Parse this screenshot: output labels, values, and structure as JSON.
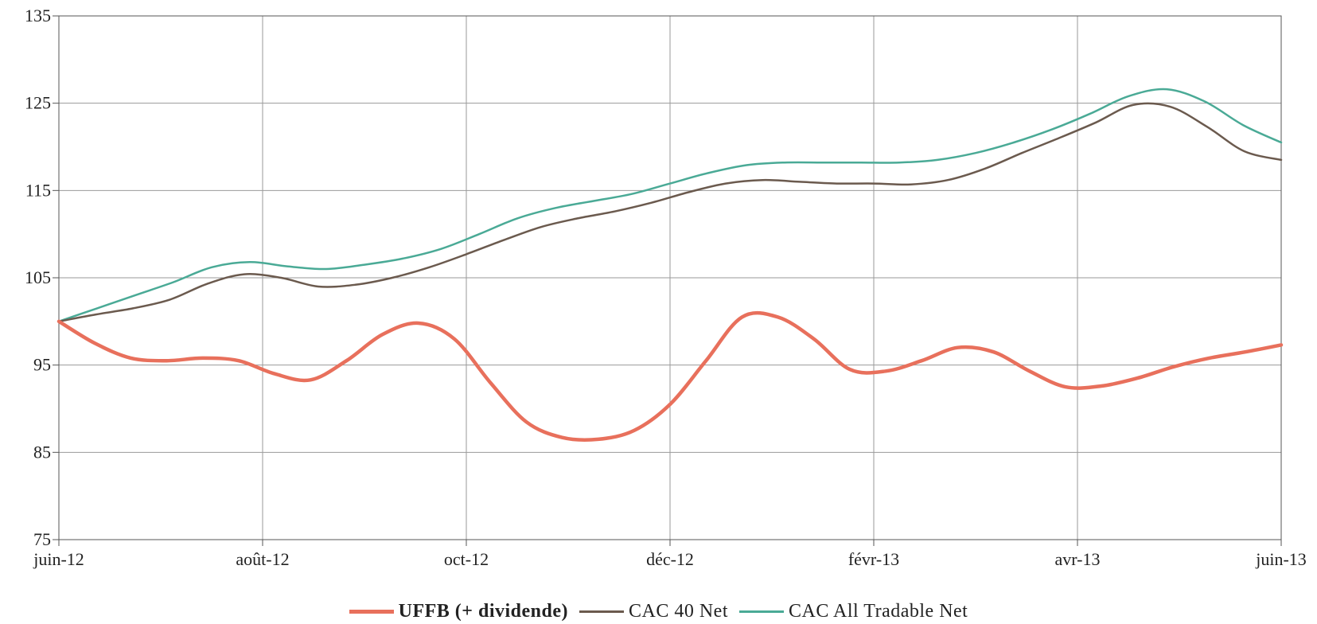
{
  "chart_data": {
    "type": "line",
    "title": "",
    "xlabel": "",
    "ylabel": "",
    "ylim": [
      75,
      135
    ],
    "yticks": [
      "135",
      "125",
      "115",
      "105",
      "95",
      "85",
      "75"
    ],
    "ytick_values": [
      135,
      125,
      115,
      105,
      95,
      85,
      75
    ],
    "xticks": [
      "juin-12",
      "août-12",
      "oct-12",
      "déc-12",
      "févr-13",
      "avr-13",
      "juin-13"
    ],
    "grid": true,
    "legend_position": "bottom",
    "series": [
      {
        "name": "UFFB (+ dividende)",
        "color": "#e8705c",
        "bold": true,
        "values": [
          100,
          97.5,
          95.8,
          95.5,
          95.8,
          95.5,
          94,
          93.3,
          95.5,
          98.5,
          99.8,
          98,
          93,
          88.5,
          86.7,
          86.5,
          87.5,
          90.5,
          95.5,
          100.5,
          100.5,
          98,
          94.5,
          94.3,
          95.5,
          97,
          96.5,
          94.3,
          92.5,
          92.6,
          93.5,
          94.8,
          95.8,
          96.5,
          97.3
        ]
      },
      {
        "name": "CAC 40 Net",
        "color": "#6b5a4e",
        "bold": false,
        "values": [
          100,
          100.8,
          101.5,
          102.5,
          104.3,
          105.4,
          105,
          104,
          104.2,
          105,
          106.2,
          107.7,
          109.3,
          110.8,
          111.8,
          112.6,
          113.6,
          114.8,
          115.8,
          116.2,
          116,
          115.8,
          115.8,
          115.7,
          116.2,
          117.5,
          119.3,
          121,
          122.8,
          124.8,
          124.6,
          122.3,
          119.5,
          118.5
        ]
      },
      {
        "name": "CAC All Tradable Net",
        "color": "#4aaa96",
        "bold": false,
        "values": [
          100,
          101.5,
          103,
          104.5,
          106.2,
          106.8,
          106.3,
          106,
          106.5,
          107.2,
          108.3,
          110,
          111.8,
          113,
          113.8,
          114.6,
          115.8,
          117,
          117.9,
          118.2,
          118.2,
          118.2,
          118.2,
          118.5,
          119.3,
          120.5,
          122,
          123.8,
          125.8,
          126.6,
          125.2,
          122.5,
          120.5
        ]
      }
    ]
  }
}
